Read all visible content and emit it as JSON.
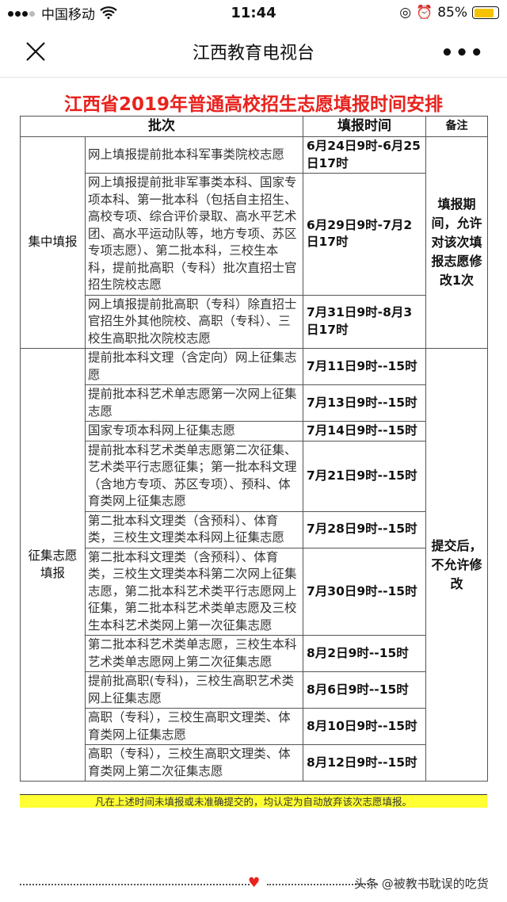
{
  "status_bar": {
    "carrier": "中国移动",
    "time": "11:44",
    "battery": "85%",
    "battery_level": 0.85
  },
  "nav": {
    "title": "江西教育电视台"
  },
  "document": {
    "title": "江西省2019年普通高校招生志愿填报时间安排",
    "headers": {
      "batch": "批次",
      "time": "填报时间",
      "note": "备注"
    },
    "groups": [
      {
        "name": "集中填报",
        "remark": "填报期间，允许对该次填报志愿修改1次",
        "rows": [
          {
            "item": "网上填报提前批本科军事类院校志愿",
            "time": "6月24日9时-6月25日17时"
          },
          {
            "item": "网上填报提前批非军事类本科、国家专项本科、第一批本科（包括自主招生、高校专项、综合评价录取、高水平艺术团、高水平运动队等，地方专项、苏区专项志愿）、第二批本科，三校生本科，提前批高职（专科）批次直招士官招生院校志愿",
            "time": "6月29日9时-7月2日17时"
          },
          {
            "item": "网上填报提前批高职（专科）除直招士官招生外其他院校、高职（专科）、三校生高职批次院校志愿",
            "time": "7月31日9时-8月3日17时"
          }
        ]
      },
      {
        "name": "征集志愿填报",
        "remark": "提交后，不允许修改",
        "rows": [
          {
            "item": "提前批本科文理（含定向）网上征集志愿",
            "time": "7月11日9时--15时"
          },
          {
            "item": "提前批本科艺术单志愿第一次网上征集志愿",
            "time": "7月13日9时--15时"
          },
          {
            "item": "国家专项本科网上征集志愿",
            "time": "7月14日9时--15时"
          },
          {
            "item": "提前批本科艺术类单志愿第二次征集、艺术类平行志愿征集；第一批本科文理（含地方专项、苏区专项）、预科、体育类网上征集志愿",
            "time": "7月21日9时--15时"
          },
          {
            "item": "第二批本科文理类（含预科）、体育类，三校生文理类本科网上征集志愿",
            "time": "7月28日9时--15时"
          },
          {
            "item": "第二批本科文理类（含预科）、体育类，三校生文理类本科第二次网上征集志愿，第二批本科艺术类平行志愿网上征集，第二批本科艺术类单志愿及三校生本科艺术类网上第一次征集志愿",
            "time": "7月30日9时--15时"
          },
          {
            "item": "第二批本科艺术类单志愿，三校生本科艺术类单志愿网上第二次征集志愿",
            "time": "8月2日9时--15时"
          },
          {
            "item": "提前批高职(专科)，三校生高职艺术类网上征集志愿",
            "time": "8月6日9时--15时"
          },
          {
            "item": "高职（专科），三校生高职文理类、体育类网上征集志愿",
            "time": "8月10日9时--15时"
          },
          {
            "item": "高职（专科），三校生高职文理类、体育类网上第二次征集志愿",
            "time": "8月12日9时--15时"
          }
        ]
      }
    ],
    "notice": "凡在上述时间未填报或未准确提交的，均认定为自动放弃该次志愿填报。"
  },
  "footer": {
    "watermark": "头条 @被教书耽误的吃货"
  },
  "colors": {
    "title_red": "#e8221d",
    "notice_yellow": "#ffff33",
    "battery": "#f5c300"
  }
}
